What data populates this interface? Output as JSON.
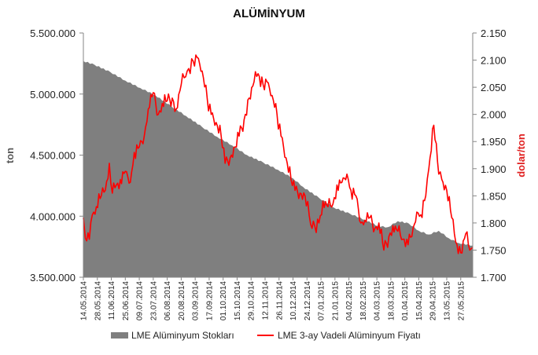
{
  "chart_data": {
    "type": "area+line",
    "title": "ALÜMİNYUM",
    "ylabel_left": "ton",
    "ylabel_right": "dolar/ton",
    "ylim_left": [
      3500000,
      5500000
    ],
    "ylim_right": [
      1700,
      2150
    ],
    "y_ticks_left": [
      "3.500.000",
      "4.000.000",
      "4.500.000",
      "5.000.000",
      "5.500.000"
    ],
    "y_ticks_right": [
      "1.700",
      "1.750",
      "1.800",
      "1.850",
      "1.900",
      "1.950",
      "2.000",
      "2.050",
      "2.100",
      "2.150"
    ],
    "x_range": [
      "2014-05-14",
      "2015-06-08"
    ],
    "x_ticks": [
      "14.05.2014",
      "28.05.2014",
      "11.06.2014",
      "25.06.2014",
      "09.07.2014",
      "23.07.2014",
      "06.08.2014",
      "20.08.2014",
      "03.09.2014",
      "17.09.2014",
      "01.10.2014",
      "15.10.2014",
      "29.10.2014",
      "12.11.2014",
      "26.11.2014",
      "10.12.2014",
      "24.12.2014",
      "07.01.2015",
      "21.01.2015",
      "04.02.2015",
      "18.02.2015",
      "04.03.2015",
      "18.03.2015",
      "01.04.2015",
      "15.04.2015",
      "29.04.2015",
      "13.05.2015",
      "27.05.2015"
    ],
    "grid": false,
    "legend_position": "bottom",
    "series": [
      {
        "name": "LME Alüminyum Stokları",
        "type": "area",
        "axis": "left",
        "color": "#7f7f7f",
        "x": [
          "2014-05-14",
          "2014-05-25",
          "2014-06-10",
          "2014-06-25",
          "2014-07-10",
          "2014-07-25",
          "2014-08-10",
          "2014-08-25",
          "2014-09-10",
          "2014-09-25",
          "2014-10-10",
          "2014-10-25",
          "2014-11-10",
          "2014-11-25",
          "2014-12-10",
          "2014-12-20",
          "2015-01-05",
          "2015-01-20",
          "2015-02-05",
          "2015-02-20",
          "2015-03-05",
          "2015-03-15",
          "2015-03-25",
          "2015-04-05",
          "2015-04-15",
          "2015-04-25",
          "2015-05-05",
          "2015-05-15",
          "2015-05-25",
          "2015-06-08"
        ],
        "y": [
          5270000,
          5240000,
          5180000,
          5110000,
          5050000,
          4990000,
          4900000,
          4820000,
          4730000,
          4650000,
          4580000,
          4500000,
          4440000,
          4380000,
          4310000,
          4240000,
          4150000,
          4070000,
          4020000,
          3970000,
          3920000,
          3910000,
          3960000,
          3940000,
          3880000,
          3850000,
          3880000,
          3820000,
          3780000,
          3760000
        ]
      },
      {
        "name": "LME 3-ay Vadeli Alüminyum Fiyatı",
        "type": "line",
        "axis": "right",
        "color": "#ff0000",
        "x": [
          "2014-05-14",
          "2014-05-16",
          "2014-05-20",
          "2014-05-23",
          "2014-05-27",
          "2014-06-01",
          "2014-06-05",
          "2014-06-09",
          "2014-06-12",
          "2014-06-16",
          "2014-06-20",
          "2014-06-25",
          "2014-06-30",
          "2014-07-04",
          "2014-07-09",
          "2014-07-14",
          "2014-07-18",
          "2014-07-23",
          "2014-07-28",
          "2014-08-01",
          "2014-08-06",
          "2014-08-11",
          "2014-08-15",
          "2014-08-20",
          "2014-08-26",
          "2014-09-01",
          "2014-09-05",
          "2014-09-10",
          "2014-09-15",
          "2014-09-19",
          "2014-09-24",
          "2014-09-29",
          "2014-10-03",
          "2014-10-08",
          "2014-10-13",
          "2014-10-17",
          "2014-10-22",
          "2014-10-27",
          "2014-11-01",
          "2014-11-05",
          "2014-11-10",
          "2014-11-14",
          "2014-11-19",
          "2014-11-24",
          "2014-11-28",
          "2014-12-03",
          "2014-12-08",
          "2014-12-12",
          "2014-12-17",
          "2014-12-22",
          "2014-12-29",
          "2015-01-05",
          "2015-01-09",
          "2015-01-14",
          "2015-01-19",
          "2015-01-23",
          "2015-01-28",
          "2015-02-02",
          "2015-02-06",
          "2015-02-11",
          "2015-02-16",
          "2015-02-20",
          "2015-02-25",
          "2015-03-02",
          "2015-03-06",
          "2015-03-11",
          "2015-03-16",
          "2015-03-20",
          "2015-03-25",
          "2015-03-30",
          "2015-04-03",
          "2015-04-08",
          "2015-04-13",
          "2015-04-17",
          "2015-04-22",
          "2015-04-25",
          "2015-04-30",
          "2015-05-05",
          "2015-05-08",
          "2015-05-13",
          "2015-05-18",
          "2015-05-22",
          "2015-05-27",
          "2015-06-01",
          "2015-06-05",
          "2015-06-08"
        ],
        "y": [
          1810,
          1772,
          1770,
          1815,
          1830,
          1850,
          1860,
          1910,
          1855,
          1870,
          1880,
          1895,
          1875,
          1930,
          1940,
          1960,
          2010,
          2040,
          2000,
          2020,
          2025,
          2030,
          2010,
          2055,
          2080,
          2098,
          2105,
          2080,
          2030,
          2000,
          1985,
          1960,
          1910,
          1920,
          1940,
          1960,
          1990,
          2030,
          2060,
          2075,
          2055,
          2060,
          2035,
          2000,
          1960,
          1920,
          1880,
          1860,
          1855,
          1850,
          1790,
          1800,
          1840,
          1830,
          1835,
          1870,
          1875,
          1890,
          1860,
          1850,
          1800,
          1805,
          1810,
          1790,
          1800,
          1750,
          1775,
          1795,
          1785,
          1770,
          1770,
          1775,
          1820,
          1815,
          1850,
          1900,
          1980,
          1890,
          1880,
          1860,
          1810,
          1765,
          1745,
          1780,
          1750,
          1755
        ]
      }
    ]
  }
}
